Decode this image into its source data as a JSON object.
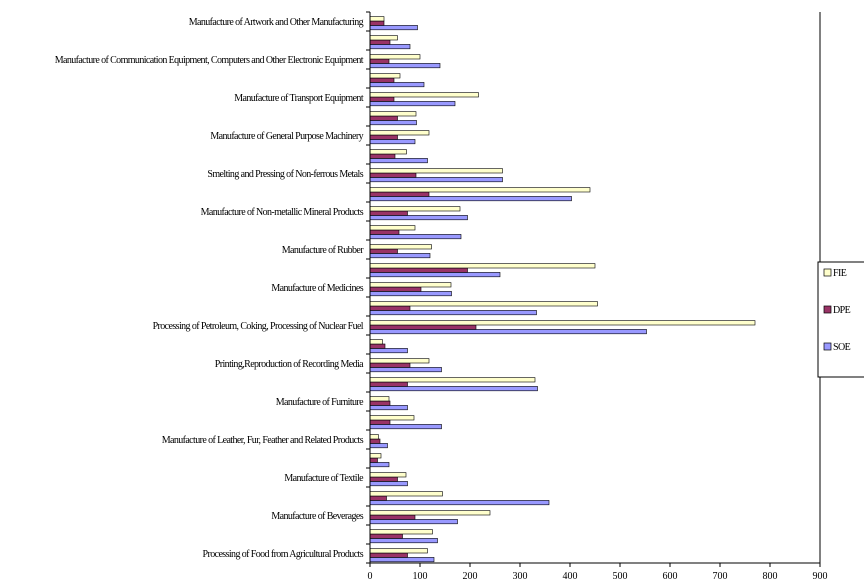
{
  "chart_data": {
    "type": "bar",
    "orientation": "horizontal",
    "categories": [
      "Processing of Food from Agricultural Products",
      "",
      "Manufacture of  Beverages",
      "",
      "Manufacture of  Textile",
      "",
      "Manufacture of  Leather, Fur, Feather and Related Products",
      "",
      "Manufacture of  Furniture",
      "",
      "Printing,Reproduction of Recording Media",
      "",
      "Processing of Petroleum, Coking, Processing of Nuclear Fuel",
      "",
      "Manufacture of Medicines",
      "",
      "Manufacture of Rubber",
      "",
      "Manufacture of  Non-metallic Mineral Products",
      "",
      "Smelting and Pressing of Non-ferrous Metals",
      "",
      "Manufacture of General Purpose Machinery",
      "",
      "Manufacture of  Transport  Equipment",
      "",
      "Manufacture of Communication Equipment, Computers and Other Electronic Equipment",
      "",
      "Manufacture of Artwork and Other Manufacturing"
    ],
    "series": [
      {
        "name": "FIE",
        "color": "#ffffcc",
        "values": [
          115,
          125,
          240,
          145,
          72,
          22,
          17,
          88,
          38,
          330,
          118,
          25,
          770,
          455,
          162,
          450,
          123,
          90,
          180,
          440,
          265,
          73,
          118,
          92,
          217,
          60,
          100,
          55,
          28
        ]
      },
      {
        "name": "DPE",
        "color": "#993366",
        "values": [
          75,
          65,
          90,
          33,
          55,
          15,
          20,
          40,
          40,
          75,
          80,
          30,
          212,
          80,
          102,
          195,
          55,
          58,
          75,
          118,
          92,
          50,
          55,
          55,
          48,
          48,
          38,
          40,
          28
        ]
      },
      {
        "name": "SOE",
        "color": "#9999ff",
        "values": [
          128,
          135,
          175,
          358,
          75,
          38,
          35,
          143,
          75,
          335,
          143,
          75,
          553,
          333,
          163,
          260,
          120,
          182,
          195,
          403,
          265,
          115,
          90,
          93,
          170,
          108,
          140,
          80,
          95
        ]
      }
    ],
    "xlim": [
      0,
      900
    ],
    "xticks": [
      "0",
      "100",
      "200",
      "300",
      "400",
      "500",
      "600",
      "700",
      "800",
      "900"
    ],
    "legend": {
      "position": "right",
      "entries": [
        "FIE",
        "DPE",
        "SOE"
      ]
    },
    "grid": false,
    "title": "",
    "xlabel": "",
    "ylabel": ""
  }
}
